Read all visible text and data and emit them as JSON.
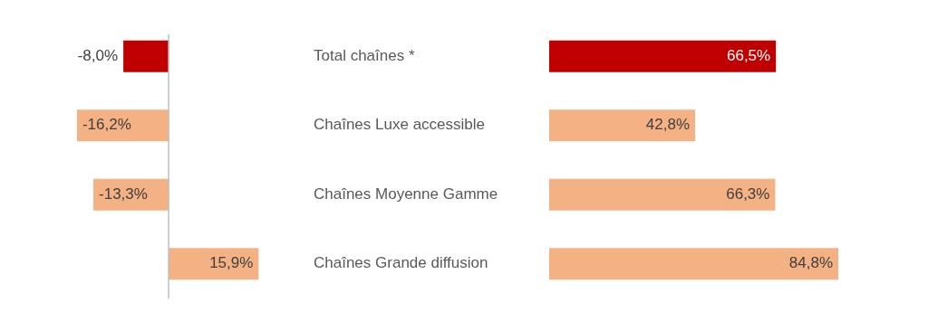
{
  "chart_data": [
    {
      "type": "bar",
      "orientation": "horizontal",
      "categories": [
        "Total chaînes *",
        "Chaînes Luxe accessible",
        "Chaînes Moyenne Gamme",
        "Chaînes Grande diffusion"
      ],
      "tick_labels": "y",
      "values": [
        -8.0,
        -16.2,
        -13.3,
        15.9
      ],
      "value_labels": [
        "-8,0%",
        "-16,2%",
        "-13,3%",
        "15,9%"
      ],
      "colors": [
        "#c00000",
        "#f4b183",
        "#f4b183",
        "#f4b183"
      ],
      "legend": false
    },
    {
      "type": "bar",
      "orientation": "horizontal",
      "categories": [
        null,
        null,
        null,
        null
      ],
      "tick_labels": false,
      "values": [
        66.5,
        42.8,
        66.3,
        84.8
      ],
      "value_labels": [
        "66,5%",
        "42,8%",
        "66,3%",
        "84,8%"
      ],
      "colors": [
        "#c00000",
        "#f4b183",
        "#f4b183",
        "#f4b183"
      ],
      "legend": false
    }
  ]
}
